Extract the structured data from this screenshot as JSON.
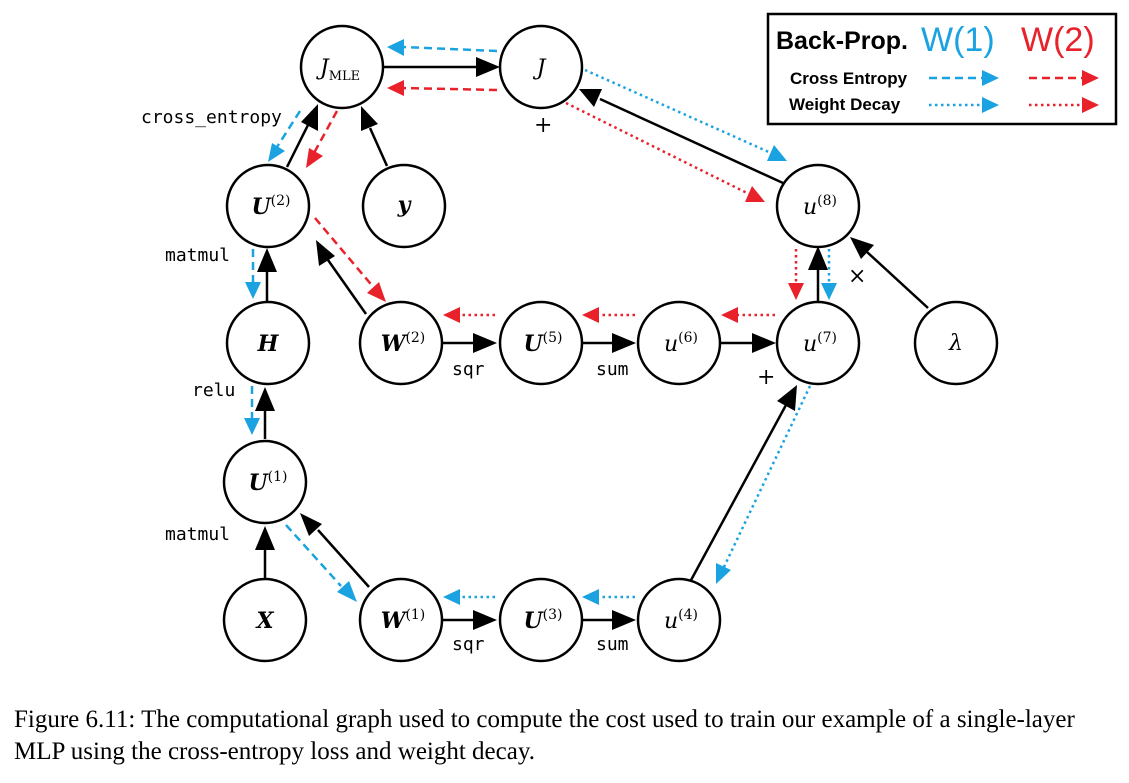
{
  "colors": {
    "w1": "#1aa3e0",
    "w2": "#e8212b",
    "ink": "#000000"
  },
  "legend": {
    "heading": "Back-Prop.",
    "w1": "W(1)",
    "w2": "W(2)",
    "cross_entropy": "Cross Entropy",
    "weight_decay": "Weight Decay"
  },
  "nodes": {
    "jmle": {
      "base": "J",
      "sub": "MLE"
    },
    "j": {
      "base": "J"
    },
    "u2": {
      "base": "U",
      "sup": "(2)"
    },
    "y": {
      "base": "y"
    },
    "u8": {
      "base": "u",
      "sup": "(8)"
    },
    "h": {
      "base": "H"
    },
    "w2": {
      "base": "W",
      "sup": "(2)"
    },
    "u5": {
      "base": "U",
      "sup": "(5)"
    },
    "u6": {
      "base": "u",
      "sup": "(6)"
    },
    "u7": {
      "base": "u",
      "sup": "(7)"
    },
    "lambda": {
      "base": "λ"
    },
    "u1": {
      "base": "U",
      "sup": "(1)"
    },
    "x": {
      "base": "X"
    },
    "w1": {
      "base": "W",
      "sup": "(1)"
    },
    "u3": {
      "base": "U",
      "sup": "(3)"
    },
    "u4": {
      "base": "u",
      "sup": "(4)"
    }
  },
  "op_labels": {
    "cross_entropy": "cross_entropy",
    "matmul_top": "matmul",
    "relu": "relu",
    "matmul_bottom": "matmul",
    "sqr_top": "sqr",
    "sum_top": "sum",
    "sqr_bottom": "sqr",
    "sum_bottom": "sum",
    "plus_j": "+",
    "plus_u7": "+",
    "times_u8": "×"
  },
  "caption": "Figure 6.11: The computational graph used to compute the cost used to train our example of a single-layer MLP using the cross-entropy loss and weight decay."
}
